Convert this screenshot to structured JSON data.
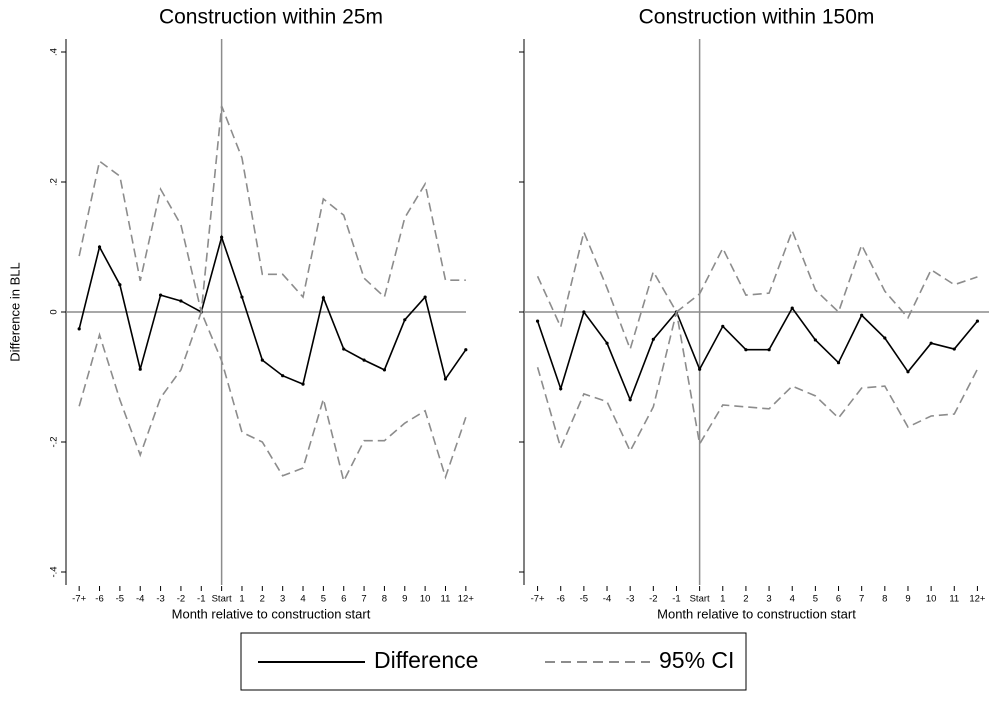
{
  "chart_data": [
    {
      "type": "line",
      "title": "Construction within 25m",
      "ylabel": "Difference in BLL",
      "xlabel": "Month relative to construction start",
      "categories": [
        "-7+",
        "-6",
        "-5",
        "-4",
        "-3",
        "-2",
        "-1",
        "Start",
        "1",
        "2",
        "3",
        "4",
        "5",
        "6",
        "7",
        "8",
        "9",
        "10",
        "11",
        "12+"
      ],
      "ylim": [
        -0.42,
        0.42
      ],
      "yticks": [
        {
          "value": -0.4,
          "label": "-.4"
        },
        {
          "value": -0.2,
          "label": "-.2"
        },
        0,
        {
          "value": 0.2,
          "label": ".2"
        },
        {
          "value": 0.4,
          "label": ".4"
        }
      ],
      "yline": 0,
      "xline": "Start",
      "series": [
        {
          "name": "Difference",
          "color": "#000000",
          "values": [
            -0.026,
            0.1,
            0.042,
            -0.088,
            0.026,
            0.017,
            0,
            0.115,
            0.023,
            -0.074,
            -0.098,
            -0.111,
            0.022,
            -0.057,
            -0.074,
            -0.089,
            -0.012,
            0.023,
            -0.103,
            -0.058
          ]
        },
        {
          "name": "95% CI",
          "color": "#8c8c8c",
          "dashed": true,
          "upper": [
            0.086,
            0.232,
            0.209,
            0.048,
            0.189,
            0.134,
            0,
            0.317,
            0.237,
            0.058,
            0.058,
            0.023,
            0.174,
            0.149,
            0.052,
            0.023,
            0.145,
            0.197,
            0.049,
            0.049
          ],
          "lower": [
            -0.145,
            -0.035,
            -0.135,
            -0.22,
            -0.132,
            -0.089,
            0,
            -0.075,
            -0.185,
            -0.2,
            -0.252,
            -0.24,
            -0.134,
            -0.26,
            -0.198,
            -0.198,
            -0.171,
            -0.152,
            -0.254,
            -0.162
          ]
        }
      ]
    },
    {
      "type": "line",
      "title": "Construction within 150m",
      "xlabel": "Month relative to construction start",
      "categories": [
        "-7+",
        "-6",
        "-5",
        "-4",
        "-3",
        "-2",
        "-1",
        "Start",
        "1",
        "2",
        "3",
        "4",
        "5",
        "6",
        "7",
        "8",
        "9",
        "10",
        "11",
        "12+"
      ],
      "ylim": [
        -0.42,
        0.42
      ],
      "yticks": [
        -0.4,
        -0.2,
        0,
        0.2,
        0.4
      ],
      "yline": 0,
      "xline": "Start",
      "series": [
        {
          "color": "#000000",
          "values": [
            -0.014,
            -0.118,
            0,
            -0.048,
            -0.135,
            -0.042,
            0,
            -0.088,
            -0.022,
            -0.058,
            -0.058,
            0.006,
            -0.043,
            -0.078,
            -0.005,
            -0.04,
            -0.092,
            -0.048,
            -0.057,
            -0.014
          ]
        },
        {
          "color": "#8c8c8c",
          "dashed": true,
          "upper": [
            0.055,
            -0.023,
            0.123,
            0.037,
            -0.057,
            0.062,
            0,
            0.028,
            0.098,
            0.026,
            0.029,
            0.125,
            0.034,
            0,
            0.103,
            0.032,
            -0.009,
            0.065,
            0.042,
            0.054
          ],
          "lower": [
            -0.085,
            -0.209,
            -0.126,
            -0.138,
            -0.214,
            -0.146,
            0,
            -0.203,
            -0.143,
            -0.146,
            -0.149,
            -0.114,
            -0.129,
            -0.163,
            -0.117,
            -0.114,
            -0.177,
            -0.16,
            -0.157,
            -0.088
          ]
        }
      ]
    }
  ]
}
